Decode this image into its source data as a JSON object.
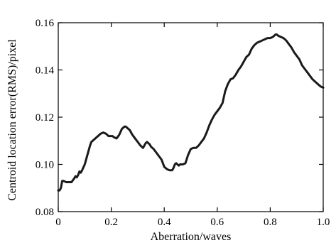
{
  "chart_data": {
    "type": "line",
    "title": "",
    "xlabel": "Aberration/waves",
    "ylabel": "Centroid location error(RMS)/pixel",
    "xlim": [
      0,
      1.0
    ],
    "ylim": [
      0.08,
      0.16
    ],
    "xticks": [
      0,
      0.2,
      0.4,
      0.6,
      0.8,
      1.0
    ],
    "xtick_labels": [
      "0",
      "0.2",
      "0.4",
      "0.6",
      "0.8",
      "1.0"
    ],
    "yticks": [
      0.08,
      0.1,
      0.12,
      0.14,
      0.16
    ],
    "ytick_labels": [
      "0.08",
      "0.10",
      "0.12",
      "0.14",
      "0.16"
    ],
    "grid": false,
    "legend": "none",
    "line_color": "#1a1a1a",
    "series": [
      {
        "x": [
          0.0,
          0.005,
          0.01,
          0.015,
          0.02,
          0.03,
          0.04,
          0.05,
          0.06,
          0.065,
          0.07,
          0.075,
          0.08,
          0.085,
          0.09,
          0.1,
          0.105,
          0.11,
          0.115,
          0.12,
          0.125,
          0.13,
          0.14,
          0.15,
          0.16,
          0.17,
          0.18,
          0.19,
          0.195,
          0.2,
          0.205,
          0.21,
          0.22,
          0.23,
          0.24,
          0.25,
          0.255,
          0.26,
          0.265,
          0.27,
          0.275,
          0.28,
          0.29,
          0.3,
          0.31,
          0.32,
          0.325,
          0.33,
          0.335,
          0.34,
          0.345,
          0.35,
          0.36,
          0.37,
          0.38,
          0.39,
          0.4,
          0.41,
          0.42,
          0.43,
          0.435,
          0.44,
          0.445,
          0.45,
          0.455,
          0.46,
          0.47,
          0.48,
          0.49,
          0.5,
          0.51,
          0.52,
          0.53,
          0.54,
          0.55,
          0.56,
          0.57,
          0.58,
          0.59,
          0.6,
          0.61,
          0.62,
          0.63,
          0.64,
          0.65,
          0.66,
          0.67,
          0.68,
          0.69,
          0.7,
          0.71,
          0.72,
          0.73,
          0.74,
          0.75,
          0.76,
          0.77,
          0.78,
          0.79,
          0.8,
          0.81,
          0.82,
          0.825,
          0.83,
          0.84,
          0.85,
          0.86,
          0.87,
          0.88,
          0.89,
          0.9,
          0.91,
          0.92,
          0.93,
          0.94,
          0.95,
          0.96,
          0.97,
          0.98,
          0.99,
          1.0
        ],
        "y": [
          0.089,
          0.089,
          0.09,
          0.093,
          0.093,
          0.0925,
          0.0925,
          0.0925,
          0.094,
          0.095,
          0.0945,
          0.0955,
          0.097,
          0.0965,
          0.0975,
          0.1,
          0.102,
          0.104,
          0.106,
          0.108,
          0.1095,
          0.11,
          0.111,
          0.112,
          0.113,
          0.1135,
          0.113,
          0.112,
          0.112,
          0.112,
          0.112,
          0.1115,
          0.111,
          0.1125,
          0.115,
          0.116,
          0.116,
          0.1155,
          0.115,
          0.1145,
          0.1135,
          0.1125,
          0.111,
          0.1095,
          0.108,
          0.107,
          0.108,
          0.109,
          0.1095,
          0.109,
          0.1085,
          0.1075,
          0.1065,
          0.105,
          0.1035,
          0.102,
          0.099,
          0.098,
          0.0975,
          0.0975,
          0.0985,
          0.1,
          0.1005,
          0.1,
          0.0995,
          0.1,
          0.1,
          0.1005,
          0.104,
          0.1065,
          0.107,
          0.107,
          0.108,
          0.1095,
          0.111,
          0.1135,
          0.1165,
          0.119,
          0.121,
          0.1225,
          0.124,
          0.126,
          0.131,
          0.134,
          0.136,
          0.1365,
          0.138,
          0.14,
          0.1415,
          0.1435,
          0.1455,
          0.1465,
          0.149,
          0.1505,
          0.1515,
          0.152,
          0.1525,
          0.153,
          0.1535,
          0.1535,
          0.154,
          0.155,
          0.155,
          0.1545,
          0.154,
          0.1535,
          0.1525,
          0.151,
          0.1495,
          0.1475,
          0.146,
          0.1445,
          0.142,
          0.1405,
          0.139,
          0.1375,
          0.136,
          0.135,
          0.134,
          0.133,
          0.1325
        ]
      }
    ]
  }
}
